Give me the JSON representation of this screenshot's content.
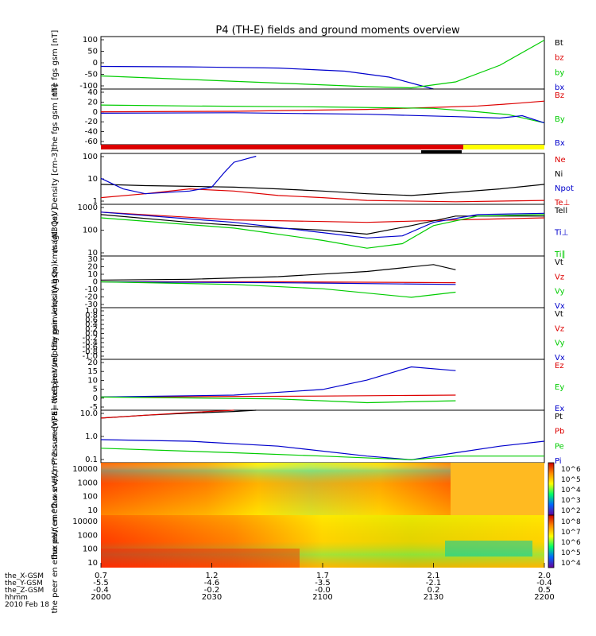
{
  "title": "P4 (TH-E) fields and ground moments overview",
  "colors": {
    "black": "#000000",
    "red": "#dd0000",
    "green": "#00cc00",
    "blue": "#0000cc",
    "yellow": "#ffff00"
  },
  "xaxis": {
    "row_labels": [
      "the_X-GSM",
      "the_Y-GSM",
      "the_Z-GSM",
      "hhmm",
      "2010 Feb 18"
    ],
    "ticks": [
      {
        "vals": [
          "0.7",
          "-5.5",
          "-0.4",
          "2000"
        ]
      },
      {
        "vals": [
          "1.2",
          "-4.6",
          "-0.2",
          "2030"
        ]
      },
      {
        "vals": [
          "1.7",
          "-3.5",
          "-0.0",
          "2100"
        ]
      },
      {
        "vals": [
          "2.1",
          "-2.1",
          "0.2",
          "2130"
        ]
      },
      {
        "vals": [
          "2.0",
          "-0.4",
          "0.5",
          "2200"
        ]
      }
    ]
  },
  "chart_data": [
    {
      "type": "line",
      "ylabel": "the fgs gsm [nT]",
      "ylim": [
        -110,
        110
      ],
      "yticks": [
        "100",
        "50",
        "0",
        "-50",
        "-100"
      ],
      "legend": [
        "Bt",
        "bz",
        "by",
        "bx"
      ],
      "series": [
        {
          "name": "bx",
          "color": "blue",
          "x": [
            0,
            0.2,
            0.4,
            0.55,
            0.65,
            0.72,
            0.75
          ],
          "y": [
            -15,
            -17,
            -22,
            -35,
            -60,
            -95,
            -110
          ]
        },
        {
          "name": "by",
          "color": "green",
          "x": [
            0,
            0.2,
            0.4,
            0.6,
            0.7,
            0.8,
            0.9,
            1.0
          ],
          "y": [
            -55,
            -70,
            -85,
            -100,
            -105,
            -80,
            -10,
            95
          ]
        }
      ]
    },
    {
      "type": "line",
      "ylabel": "the fgs gsm [nT]",
      "ylim": [
        -70,
        45
      ],
      "yticks": [
        "40",
        "20",
        "0",
        "-20",
        "-40",
        "-60"
      ],
      "legend": [
        "Bz",
        "By",
        "Bx"
      ],
      "series": [
        {
          "name": "Bz",
          "color": "red",
          "x": [
            0,
            0.3,
            0.6,
            0.75,
            0.85,
            0.93,
            1.0
          ],
          "y": [
            -2,
            -1,
            3,
            7,
            10,
            15,
            20
          ]
        },
        {
          "name": "By",
          "color": "green",
          "x": [
            0,
            0.2,
            0.5,
            0.75,
            0.85,
            0.92,
            1.0
          ],
          "y": [
            12,
            10,
            8,
            5,
            -2,
            -8,
            -25
          ]
        },
        {
          "name": "Bx",
          "color": "blue",
          "x": [
            0,
            0.3,
            0.6,
            0.8,
            0.9,
            0.95,
            1.0
          ],
          "y": [
            -5,
            -4,
            -7,
            -12,
            -15,
            -10,
            -25
          ]
        }
      ]
    },
    {
      "type": "line",
      "ylabel": "Density [cm-3]",
      "ylog": true,
      "ylim": [
        1,
        200
      ],
      "yticks": [
        "100",
        "10",
        "1"
      ],
      "legend": [
        "Ne",
        "Ni",
        "Npot",
        "Te⊥"
      ],
      "series": [
        {
          "name": "Ni",
          "color": "black",
          "x": [
            0,
            0.1,
            0.2,
            0.3,
            0.4,
            0.5,
            0.6,
            0.7,
            0.8,
            0.9,
            1.0
          ],
          "y": [
            8,
            7,
            6.5,
            6,
            5,
            4,
            3,
            2.5,
            3.5,
            5,
            8
          ]
        },
        {
          "name": "Ne",
          "color": "red",
          "x": [
            0,
            0.1,
            0.2,
            0.3,
            0.4,
            0.5,
            0.6,
            0.8,
            1.0
          ],
          "y": [
            2,
            3,
            5,
            4,
            2.5,
            2,
            1.5,
            1.3,
            1.5
          ]
        },
        {
          "name": "Npot",
          "color": "blue",
          "x": [
            0,
            0.05,
            0.1,
            0.2,
            0.25,
            0.28,
            0.3,
            0.35
          ],
          "y": [
            15,
            5,
            3,
            4,
            6,
            30,
            80,
            150
          ]
        }
      ]
    },
    {
      "type": "line",
      "ylabel": "magt3 [eV]",
      "ylog": true,
      "ylim": [
        10,
        1000
      ],
      "yticks": [
        "1000",
        "100",
        "10"
      ],
      "legend": [
        "Tell",
        "Ti⊥",
        "Ti∥"
      ],
      "series": [
        {
          "name": "Te",
          "color": "red",
          "x": [
            0,
            0.3,
            0.6,
            0.8,
            1.0
          ],
          "y": [
            500,
            250,
            200,
            250,
            300
          ]
        },
        {
          "name": "Ti",
          "color": "black",
          "x": [
            0,
            0.2,
            0.4,
            0.5,
            0.6,
            0.7,
            0.8,
            1.0
          ],
          "y": [
            400,
            200,
            120,
            100,
            70,
            150,
            350,
            350
          ]
        },
        {
          "name": "Tperp",
          "color": "blue",
          "x": [
            0,
            0.3,
            0.5,
            0.6,
            0.68,
            0.75,
            0.85,
            1.0
          ],
          "y": [
            500,
            200,
            80,
            50,
            60,
            200,
            400,
            450
          ]
        },
        {
          "name": "Tpar",
          "color": "green",
          "x": [
            0,
            0.3,
            0.5,
            0.6,
            0.68,
            0.75,
            0.85,
            1.0
          ],
          "y": [
            300,
            120,
            40,
            20,
            30,
            150,
            350,
            400
          ]
        }
      ]
    },
    {
      "type": "line",
      "ylabel": "the peir velocity gsm km/s (All Qs)",
      "ylim": [
        -30,
        30
      ],
      "yticks": [
        "30",
        "20",
        "10",
        "0",
        "-10",
        "-20",
        "-30"
      ],
      "legend": [
        "Vt",
        "Vz",
        "Vy",
        "Vx"
      ],
      "series": [
        {
          "name": "Vt",
          "color": "black",
          "x": [
            0,
            0.2,
            0.4,
            0.6,
            0.75,
            0.8
          ],
          "y": [
            2,
            3,
            6,
            12,
            20,
            14
          ]
        },
        {
          "name": "Vz",
          "color": "red",
          "x": [
            0,
            0.4,
            0.8
          ],
          "y": [
            0,
            0,
            -1
          ]
        },
        {
          "name": "Vx",
          "color": "blue",
          "x": [
            0,
            0.4,
            0.8
          ],
          "y": [
            0,
            -1,
            -3
          ]
        },
        {
          "name": "Vy",
          "color": "green",
          "x": [
            0,
            0.3,
            0.5,
            0.7,
            0.8
          ],
          "y": [
            0,
            -3,
            -8,
            -18,
            -12
          ]
        }
      ]
    },
    {
      "type": "line",
      "ylabel": "the peer velocity gsm km/s (All Qs)",
      "ylim": [
        -1,
        1
      ],
      "yticks": [
        "1.0",
        "0.8",
        "0.6",
        "0.4",
        "0.2",
        "0.0",
        "-0.2",
        "-0.4",
        "-0.6",
        "-0.8",
        "-1.0"
      ],
      "legend": [
        "Vt",
        "Vz",
        "Vy",
        "Vx"
      ],
      "series": []
    },
    {
      "type": "line",
      "ylabel": "E=-VxB [mV/m]",
      "ylim": [
        -7,
        20
      ],
      "yticks": [
        "20",
        "15",
        "10",
        "5",
        "0",
        "-5"
      ],
      "legend": [
        "Ez",
        "Ey",
        "Ex"
      ],
      "series": [
        {
          "name": "Ez",
          "color": "red",
          "x": [
            0,
            0.5,
            0.8
          ],
          "y": [
            0,
            0.5,
            1
          ]
        },
        {
          "name": "Ex",
          "color": "blue",
          "x": [
            0,
            0.3,
            0.5,
            0.6,
            0.7,
            0.8
          ],
          "y": [
            0,
            1,
            4,
            9,
            16,
            14
          ]
        },
        {
          "name": "Ey",
          "color": "green",
          "x": [
            0,
            0.4,
            0.6,
            0.8
          ],
          "y": [
            0,
            -1,
            -3,
            -2
          ]
        }
      ]
    },
    {
      "type": "line",
      "ylabel": "Pressure [nPa]",
      "ylog": true,
      "ylim": [
        0.02,
        30
      ],
      "yticks": [
        "10.0",
        "1.0",
        "0.1"
      ],
      "legend": [
        "Pt",
        "Pb",
        "Pe",
        "Pi"
      ],
      "series": [
        {
          "name": "Pt",
          "color": "black",
          "x": [
            0,
            0.1,
            0.2,
            0.3,
            0.35
          ],
          "y": [
            10,
            15,
            20,
            25,
            30
          ]
        },
        {
          "name": "Pb",
          "color": "red",
          "x": [
            0,
            0.1,
            0.2,
            0.3
          ],
          "y": [
            10,
            15,
            22,
            30
          ]
        },
        {
          "name": "Pi",
          "color": "blue",
          "x": [
            0,
            0.2,
            0.4,
            0.6,
            0.7,
            0.8,
            0.9,
            1.0
          ],
          "y": [
            0.5,
            0.4,
            0.2,
            0.05,
            0.03,
            0.08,
            0.2,
            0.4
          ]
        },
        {
          "name": "Pe",
          "color": "green",
          "x": [
            0,
            0.3,
            0.5,
            0.7,
            0.8,
            1.0
          ],
          "y": [
            0.15,
            0.08,
            0.05,
            0.03,
            0.05,
            0.05
          ]
        }
      ]
    },
    {
      "type": "heatmap",
      "ylabel": "the peir en eflux eV/(cm^2-s-sr-eV)",
      "yticks": [
        "10000",
        "1000",
        "100",
        "10"
      ],
      "colorbar_ticks": [
        "10^6",
        "10^5",
        "10^4",
        "10^3",
        "10^2"
      ]
    },
    {
      "type": "heatmap",
      "ylabel": "the peer en eflux eV/(cm^2-s-sr-eV)",
      "yticks": [
        "10000",
        "1000",
        "100",
        "10"
      ],
      "colorbar_ticks": [
        "10^8",
        "10^7",
        "10^6",
        "10^5",
        "10^4"
      ]
    }
  ]
}
